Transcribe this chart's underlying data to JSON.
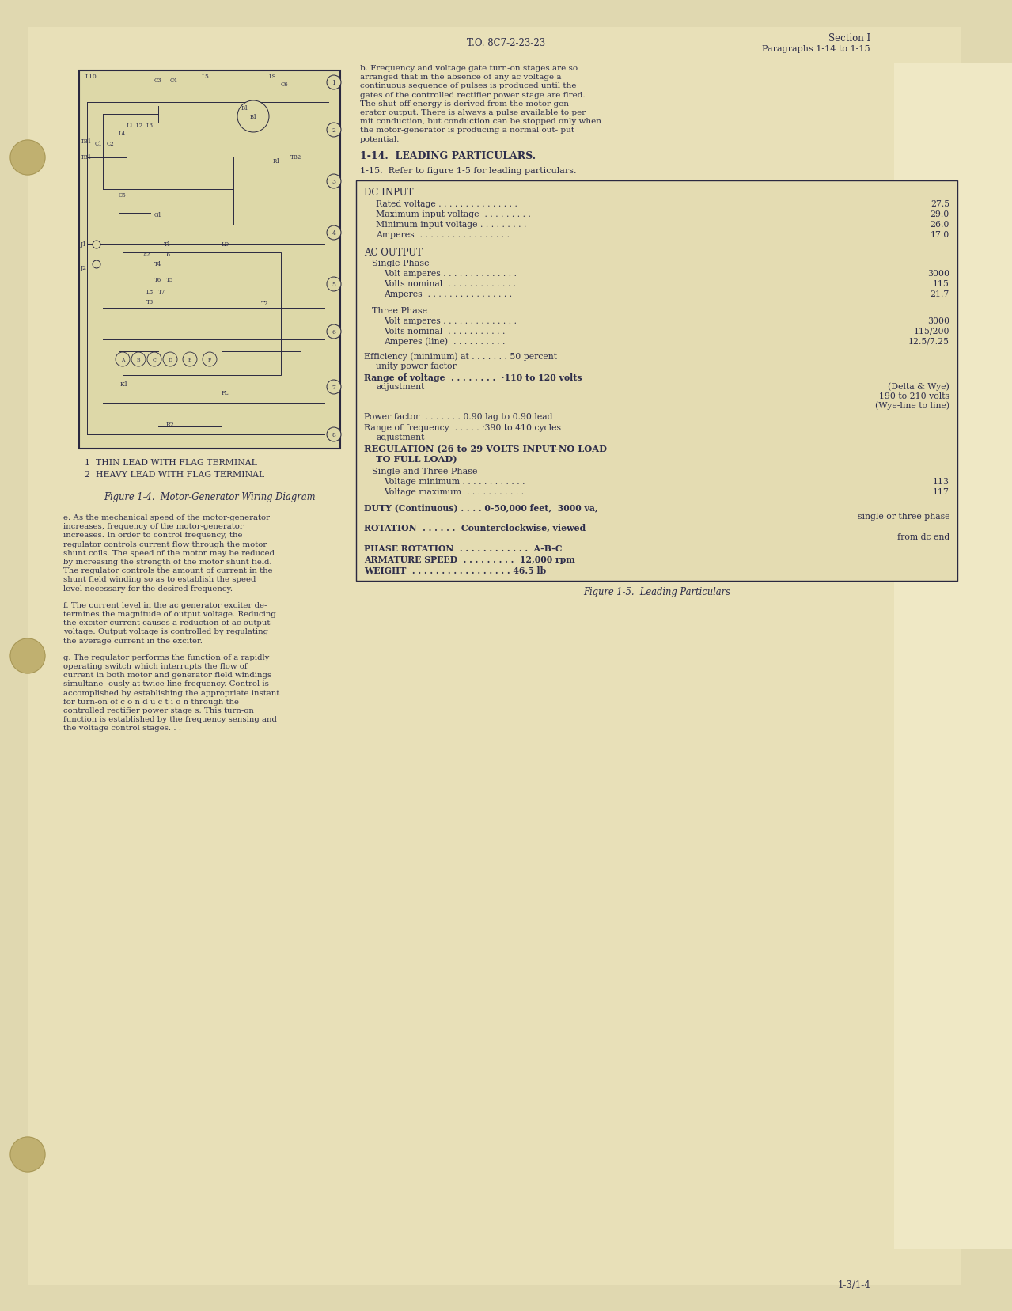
{
  "bg_color": "#e8ddb5",
  "page_bg": "#ccc4a0",
  "text_color": "#2d2d4a",
  "header_center": "T.O. 8C7-2-23-23",
  "header_right1": "Section I",
  "header_right2": "Paragraphs 1-14 to 1-15",
  "footer_text": "1-3/1-4",
  "figure_caption_wiring": "Figure 1-4.  Motor-Generator Wiring Diagram",
  "figure_caption_particulars": "Figure 1-5.  Leading Particulars",
  "section_heading1": "1-14.  LEADING PARTICULARS.",
  "para_1_15": "1-15.  Refer to figure 1-5 for leading particulars.",
  "para_b": "b.  Frequency and voltage gate turn-on stages are so arranged that in the absence of any ac voltage a continuous sequence of pulses is produced until the gates of the controlled rectifier power stage are fired. The shut-off energy is derived from the motor-gen- erator output.  There is always a pulse available to per mit conduction, but conduction can be stopped only when the motor-generator is producing a normal out- put potential.",
  "para_e": "e.  As the mechanical speed of the motor-generator increases, frequency of the motor-generator increases. In order to control frequency, the regulator controls current flow through the motor shunt coils.  The speed of the motor may be reduced by increasing the strength of the motor shunt field.  The regulator controls the amount of current in the shunt field winding so as to establish the speed level necessary for the desired frequency.",
  "para_f": "f.  The current level in the ac generator exciter de- termines the magnitude of output voltage.  Reducing the exciter current causes a reduction of ac output voltage.  Output voltage is controlled by regulating the average current in the exciter.",
  "para_g": "g.  The regulator performs the function of a rapidly operating switch which interrupts the flow of current in both motor and generator field windings simultane- ously at twice line frequency.  Control is accomplished by establishing the appropriate instant for turn-on of c o n d u c t i o n  through the controlled rectifier power stage s.  This turn-on function is established by the frequency sensing and the voltage control stages.  .  .",
  "diag_note1": "1  THIN LEAD WITH FLAG TERMINAL",
  "diag_note2": "2  HEAVY LEAD WITH FLAG TERMINAL",
  "dc_rows": [
    [
      "Rated voltage . . . . . . . . . . . . . . .",
      "27.5"
    ],
    [
      "Maximum input voltage  . . . . . . . . .",
      "29.0"
    ],
    [
      "Minimum input voltage . . . . . . . . .",
      "26.0"
    ],
    [
      "Amperes  . . . . . . . . . . . . . . . . .",
      "17.0"
    ]
  ],
  "single_phase_rows": [
    [
      "Volt amperes . . . . . . . . . . . . . .",
      "3000"
    ],
    [
      "Volts nominal  . . . . . . . . . . . . .",
      "115"
    ],
    [
      "Amperes  . . . . . . . . . . . . . . . .",
      "21.7"
    ]
  ],
  "three_phase_rows": [
    [
      "Volt amperes . . . . . . . . . . . . . .",
      "3000"
    ],
    [
      "Volts nominal  . . . . . . . . . . .",
      "115/200"
    ],
    [
      "Amperes (line)  . . . . . . . . . .",
      "12.5/7.25"
    ]
  ],
  "voltage_min_max": [
    [
      "Voltage minimum . . . . . . . . . . . .",
      "113"
    ],
    [
      "Voltage maximum  . . . . . . . . . . .",
      "117"
    ]
  ]
}
